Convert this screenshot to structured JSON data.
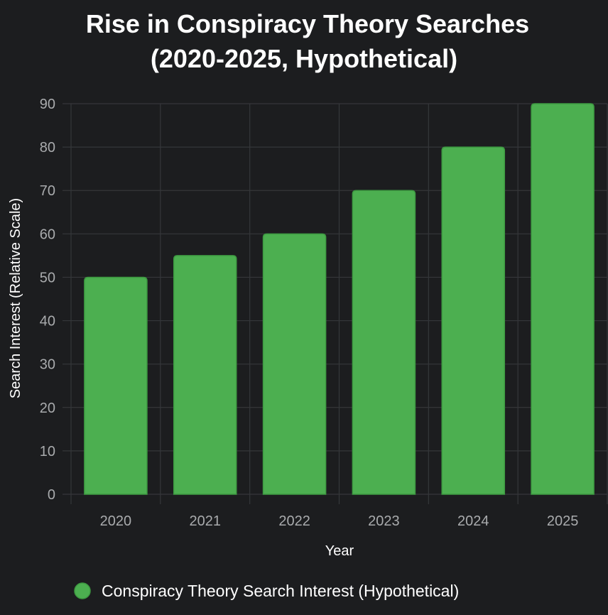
{
  "colors": {
    "background": "#1c1d1f",
    "bar_fill": "#4caf50",
    "bar_stroke": "#3d9a41",
    "grid": "#35373a",
    "tick_text": "#a9abad",
    "label_text": "#ffffff"
  },
  "chart_data": {
    "type": "bar",
    "title": [
      "Rise in Conspiracy Theory Searches",
      "(2020-2025, Hypothetical)"
    ],
    "xlabel": "Year",
    "ylabel": "Search Interest (Relative Scale)",
    "categories": [
      "2020",
      "2021",
      "2022",
      "2023",
      "2024",
      "2025"
    ],
    "series": [
      {
        "name": "Conspiracy Theory Search Interest (Hypothetical)",
        "values": [
          50,
          55,
          60,
          70,
          80,
          90
        ]
      }
    ],
    "ylim": [
      0,
      90
    ],
    "yticks": [
      0,
      10,
      20,
      30,
      40,
      50,
      60,
      70,
      80,
      90
    ],
    "grid": true,
    "legend_position": "bottom"
  }
}
